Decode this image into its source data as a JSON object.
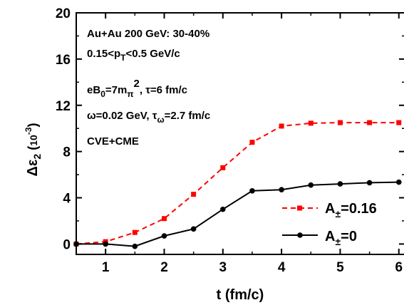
{
  "chart_data": {
    "type": "line",
    "xlabel": "t (fm/c)",
    "ylabel": "Δε₂ (10⁻³)",
    "xlim": [
      0.5,
      6.1
    ],
    "ylim": [
      -0.9,
      20
    ],
    "xticks": [
      "1",
      "2",
      "3",
      "4",
      "5",
      "6"
    ],
    "xtick_values": [
      1,
      2,
      3,
      4,
      5,
      6
    ],
    "yticks": [
      "0",
      "4",
      "8",
      "12",
      "16",
      "20"
    ],
    "ytick_values": [
      0,
      4,
      8,
      12,
      16,
      20
    ],
    "annotations": [
      "Au+Au 200 GeV: 30-40%",
      "0.15<pT<0.5 GeV/c",
      "eB0=7mπ2, τ=6 fm/c",
      "ω=0.02 GeV, τω=2.7 fm/c",
      "CVE+CME"
    ],
    "legend_position": "bottom-right",
    "series": [
      {
        "name": "A±=0.16",
        "color": "#ff0000",
        "style": "dashed",
        "marker": "square",
        "x": [
          0.5,
          1.0,
          1.5,
          2.0,
          2.5,
          3.0,
          3.5,
          4.0,
          4.5,
          5.0,
          5.5,
          6.0
        ],
        "y": [
          0.0,
          0.2,
          1.0,
          2.2,
          4.3,
          6.6,
          8.8,
          10.2,
          10.45,
          10.5,
          10.5,
          10.5
        ]
      },
      {
        "name": "A±=0",
        "color": "#000000",
        "style": "solid",
        "marker": "circle",
        "x": [
          0.5,
          1.0,
          1.5,
          2.0,
          2.5,
          3.0,
          3.5,
          4.0,
          4.5,
          5.0,
          5.5,
          6.0
        ],
        "y": [
          0.0,
          0.0,
          -0.2,
          0.7,
          1.3,
          3.0,
          4.6,
          4.7,
          5.1,
          5.2,
          5.3,
          5.35
        ]
      }
    ]
  }
}
